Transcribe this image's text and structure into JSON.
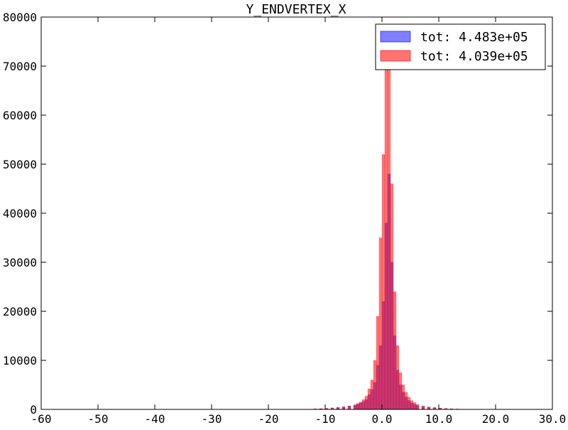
{
  "chart_data": {
    "type": "bar",
    "title": "Y_ENDVERTEX_X",
    "xlabel": "",
    "ylabel": "",
    "xlim": [
      -60,
      30
    ],
    "ylim": [
      0,
      80000
    ],
    "x_ticks": [
      -60,
      -50,
      -40,
      -30,
      -20,
      -10,
      0,
      10,
      20,
      30
    ],
    "x_tick_labels": [
      "-60",
      "-50",
      "-40",
      "-30",
      "-20",
      "-10",
      "0.0",
      "10.0",
      "20.0",
      "30.0"
    ],
    "y_ticks": [
      0,
      10000,
      20000,
      30000,
      40000,
      50000,
      60000,
      70000,
      80000
    ],
    "y_tick_labels": [
      "0",
      "10000",
      "20000",
      "30000",
      "40000",
      "50000",
      "60000",
      "70000",
      "80000"
    ],
    "grid": false,
    "legend_position": "top-right",
    "series": [
      {
        "name": "tot: 4.483e+05",
        "color": "#0000ff",
        "alpha": 0.5,
        "bin_width": 0.5,
        "bins": [
          [
            -12,
            100
          ],
          [
            -11,
            150
          ],
          [
            -10,
            200
          ],
          [
            -9,
            300
          ],
          [
            -8,
            400
          ],
          [
            -7,
            500
          ],
          [
            -6,
            700
          ],
          [
            -5,
            900
          ],
          [
            -4.5,
            1100
          ],
          [
            -4,
            1300
          ],
          [
            -3.5,
            1600
          ],
          [
            -3,
            2000
          ],
          [
            -2.5,
            3000
          ],
          [
            -2,
            4000
          ],
          [
            -1.5,
            5500
          ],
          [
            -1,
            9000
          ],
          [
            -0.5,
            13000
          ],
          [
            0,
            22000
          ],
          [
            0.5,
            38000
          ],
          [
            1,
            48000
          ],
          [
            1.5,
            30000
          ],
          [
            2,
            15000
          ],
          [
            2.5,
            8000
          ],
          [
            3,
            5000
          ],
          [
            3.5,
            3500
          ],
          [
            4,
            2500
          ],
          [
            4.5,
            1800
          ],
          [
            5,
            1300
          ],
          [
            5.5,
            1000
          ],
          [
            6,
            800
          ],
          [
            7,
            600
          ],
          [
            8,
            450
          ],
          [
            9,
            350
          ],
          [
            10,
            250
          ],
          [
            11,
            180
          ],
          [
            12,
            120
          ],
          [
            13,
            80
          ]
        ]
      },
      {
        "name": "tot: 4.039e+05",
        "color": "#ff0000",
        "alpha": 0.55,
        "bin_width": 0.5,
        "bins": [
          [
            -12,
            120
          ],
          [
            -11,
            160
          ],
          [
            -10,
            220
          ],
          [
            -9,
            300
          ],
          [
            -8,
            400
          ],
          [
            -7,
            550
          ],
          [
            -6,
            700
          ],
          [
            -5,
            900
          ],
          [
            -4.5,
            1200
          ],
          [
            -4,
            1500
          ],
          [
            -3.5,
            2000
          ],
          [
            -3,
            2700
          ],
          [
            -2.5,
            4200
          ],
          [
            -2,
            6000
          ],
          [
            -1.5,
            10000
          ],
          [
            -1,
            19000
          ],
          [
            -0.5,
            35000
          ],
          [
            0,
            52000
          ],
          [
            0.5,
            74000
          ],
          [
            1,
            70000
          ],
          [
            1.5,
            46000
          ],
          [
            2,
            24000
          ],
          [
            2.5,
            13000
          ],
          [
            3,
            7500
          ],
          [
            3.5,
            5000
          ],
          [
            4,
            3500
          ],
          [
            4.5,
            2500
          ],
          [
            5,
            1800
          ],
          [
            5.5,
            1400
          ],
          [
            6,
            1000
          ],
          [
            7,
            700
          ],
          [
            8,
            500
          ],
          [
            9,
            380
          ],
          [
            10,
            280
          ],
          [
            11,
            200
          ],
          [
            12,
            140
          ],
          [
            13,
            90
          ]
        ]
      }
    ]
  }
}
